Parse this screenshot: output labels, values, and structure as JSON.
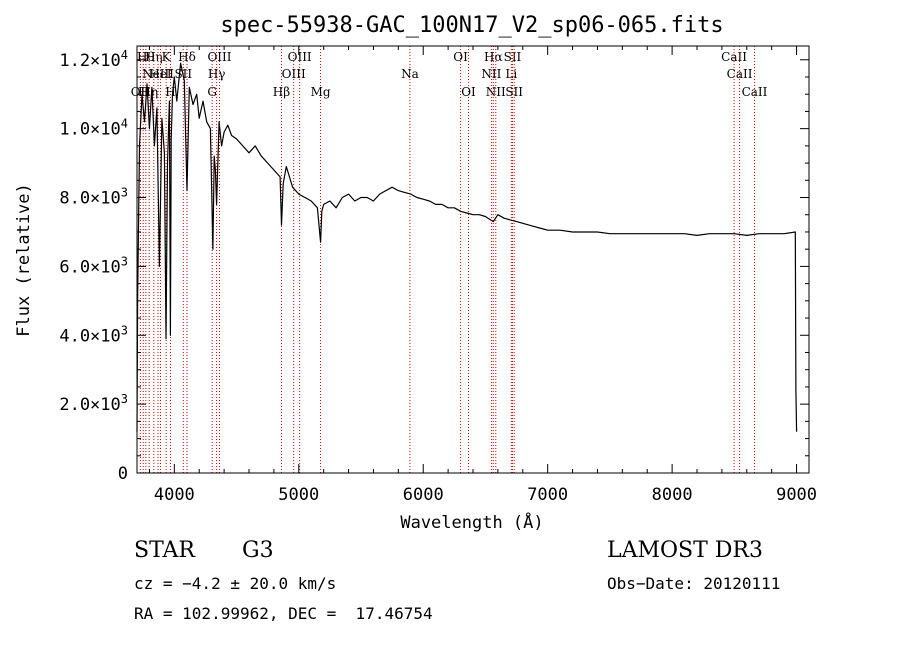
{
  "chart_data": {
    "type": "line",
    "title": "spec-55938-GAC_100N17_V2_sp06-065.fits",
    "xlabel": "Wavelength (Å)",
    "ylabel": "Flux (relative)",
    "xlim": [
      3700,
      9100
    ],
    "ylim": [
      0,
      12400
    ],
    "x_ticks": [
      {
        "value": 4000,
        "label": "4000"
      },
      {
        "value": 5000,
        "label": "5000"
      },
      {
        "value": 6000,
        "label": "6000"
      },
      {
        "value": 7000,
        "label": "7000"
      },
      {
        "value": 8000,
        "label": "8000"
      },
      {
        "value": 9000,
        "label": "9000"
      }
    ],
    "y_ticks": [
      {
        "value": 0,
        "mant": "0",
        "exp": ""
      },
      {
        "value": 2000,
        "mant": "2.0×10",
        "exp": "3"
      },
      {
        "value": 4000,
        "mant": "4.0×10",
        "exp": "3"
      },
      {
        "value": 6000,
        "mant": "6.0×10",
        "exp": "3"
      },
      {
        "value": 8000,
        "mant": "8.0×10",
        "exp": "3"
      },
      {
        "value": 10000,
        "mant": "1.0×10",
        "exp": "4"
      },
      {
        "value": 12000,
        "mant": "1.2×10",
        "exp": "4"
      }
    ],
    "series": [
      {
        "name": "spectrum",
        "x": [
          3700,
          3705,
          3720,
          3740,
          3760,
          3780,
          3800,
          3820,
          3840,
          3860,
          3880,
          3900,
          3920,
          3933,
          3945,
          3960,
          3968,
          3975,
          3985,
          4000,
          4020,
          4050,
          4080,
          4102,
          4120,
          4150,
          4180,
          4200,
          4230,
          4260,
          4290,
          4310,
          4320,
          4330,
          4340,
          4360,
          4380,
          4400,
          4430,
          4460,
          4500,
          4550,
          4600,
          4650,
          4700,
          4750,
          4800,
          4850,
          4861,
          4875,
          4900,
          4950,
          5000,
          5050,
          5100,
          5150,
          5175,
          5185,
          5200,
          5250,
          5300,
          5350,
          5400,
          5450,
          5500,
          5550,
          5600,
          5650,
          5700,
          5750,
          5800,
          5850,
          5900,
          5950,
          6000,
          6050,
          6100,
          6150,
          6200,
          6250,
          6300,
          6350,
          6400,
          6450,
          6500,
          6563,
          6600,
          6650,
          6700,
          6750,
          6800,
          6850,
          6900,
          6950,
          7000,
          7100,
          7200,
          7300,
          7400,
          7500,
          7600,
          7700,
          7800,
          7900,
          8000,
          8100,
          8200,
          8300,
          8400,
          8500,
          8600,
          8700,
          8800,
          8900,
          8990,
          8995,
          9000
        ],
        "values": [
          1200,
          5000,
          9500,
          11000,
          10200,
          11300,
          10000,
          11200,
          9500,
          10600,
          6000,
          10300,
          9300,
          3900,
          9000,
          10800,
          4000,
          9700,
          11000,
          11500,
          10800,
          11900,
          11400,
          8200,
          11200,
          10700,
          11000,
          10300,
          10800,
          10200,
          10000,
          6500,
          9200,
          8800,
          7800,
          10200,
          9500,
          9900,
          10100,
          9800,
          9700,
          9500,
          9300,
          9500,
          9200,
          9000,
          8800,
          8600,
          7200,
          8400,
          8900,
          8300,
          8100,
          8000,
          7900,
          7700,
          6700,
          7600,
          7800,
          7900,
          7700,
          8000,
          8100,
          7900,
          8000,
          8000,
          7900,
          8100,
          8200,
          8300,
          8200,
          8150,
          8100,
          8000,
          7950,
          7900,
          7800,
          7800,
          7700,
          7700,
          7600,
          7550,
          7500,
          7500,
          7450,
          7300,
          7500,
          7400,
          7350,
          7300,
          7250,
          7200,
          7150,
          7100,
          7050,
          7050,
          7000,
          7000,
          7000,
          6950,
          6950,
          6950,
          6950,
          6950,
          6950,
          6950,
          6900,
          6950,
          6950,
          6950,
          6900,
          6950,
          6950,
          6950,
          7000,
          2400,
          1200
        ]
      }
    ],
    "spectral_lines": [
      {
        "wave": 3727,
        "label": "OII",
        "row": 3
      },
      {
        "wave": 3750,
        "label": "H",
        "row": 3
      },
      {
        "wave": 3771,
        "label": "Hθ",
        "row": 1
      },
      {
        "wave": 3798,
        "label": "Hη",
        "row": 3
      },
      {
        "wave": 3835,
        "label": "Hη",
        "row": 1
      },
      {
        "wave": 3869,
        "label": "NeIII",
        "row": 2
      },
      {
        "wave": 3889,
        "label": "HeI",
        "row": 2
      },
      {
        "wave": 3934,
        "label": "K",
        "row": 1
      },
      {
        "wave": 3969,
        "label": "H",
        "row": 3
      },
      {
        "wave": 4072,
        "label": "SII",
        "row": 2
      },
      {
        "wave": 4102,
        "label": "Hδ",
        "row": 1
      },
      {
        "wave": 4304,
        "label": "G",
        "row": 3
      },
      {
        "wave": 4340,
        "label": "Hγ",
        "row": 2
      },
      {
        "wave": 4363,
        "label": "OIII",
        "row": 1
      },
      {
        "wave": 4861,
        "label": "Hβ",
        "row": 3
      },
      {
        "wave": 4959,
        "label": "OIII",
        "row": 2
      },
      {
        "wave": 5007,
        "label": "OIII",
        "row": 1
      },
      {
        "wave": 5175,
        "label": "Mg",
        "row": 3
      },
      {
        "wave": 5893,
        "label": "Na",
        "row": 2
      },
      {
        "wave": 6300,
        "label": "OI",
        "row": 1
      },
      {
        "wave": 6364,
        "label": "OI",
        "row": 3
      },
      {
        "wave": 6548,
        "label": "NII",
        "row": 2
      },
      {
        "wave": 6563,
        "label": "Hα",
        "row": 1
      },
      {
        "wave": 6583,
        "label": "NII",
        "row": 3
      },
      {
        "wave": 6708,
        "label": "Li",
        "row": 2
      },
      {
        "wave": 6717,
        "label": "SII",
        "row": 1
      },
      {
        "wave": 6731,
        "label": "SII",
        "row": 3
      },
      {
        "wave": 8498,
        "label": "CaII",
        "row": 1
      },
      {
        "wave": 8542,
        "label": "CaII",
        "row": 2
      },
      {
        "wave": 8662,
        "label": "CaII",
        "row": 3
      }
    ]
  },
  "info": {
    "class": "STAR",
    "subclass": "G3",
    "survey": "LAMOST DR3",
    "cz": "cz = −4.2 ± 20.0 km/s",
    "obs_date": "Obs−Date: 20120111",
    "coords": "RA = 102.99962, DEC =  17.46754"
  }
}
